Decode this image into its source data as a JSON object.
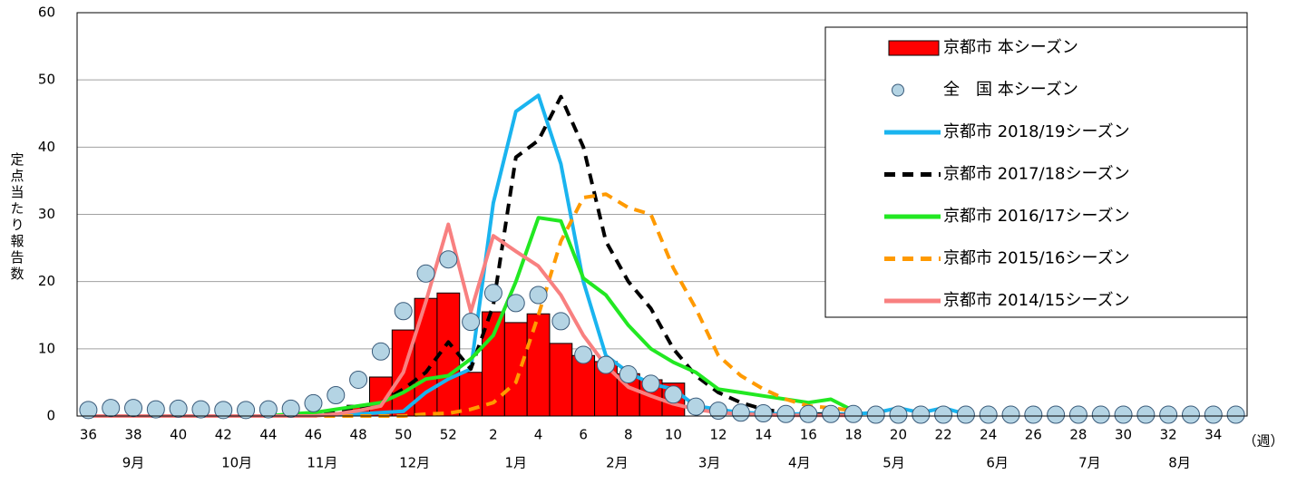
{
  "chart_data": {
    "type": "line",
    "y_axis_label": "定点当たり報告数",
    "x_unit_label": "（週）",
    "categories": [
      "36",
      null,
      "38",
      null,
      "40",
      null,
      "42",
      null,
      "44",
      null,
      "46",
      null,
      "48",
      null,
      "50",
      null,
      "52",
      null,
      "2",
      null,
      "4",
      null,
      "6",
      null,
      "8",
      null,
      "10",
      null,
      "12",
      null,
      "14",
      null,
      "16",
      null,
      "18",
      null,
      "20",
      null,
      "22",
      null,
      "24",
      null,
      "26",
      null,
      "28",
      null,
      "30",
      null,
      "32",
      null,
      "34",
      null
    ],
    "month_labels": [
      "9月",
      "10月",
      "11月",
      "12月",
      "1月",
      "2月",
      "3月",
      "4月",
      "5月",
      "6月",
      "7月",
      "8月"
    ],
    "ylim": [
      0,
      60
    ],
    "yticks": [
      0,
      10,
      20,
      30,
      40,
      50,
      60
    ],
    "grid": true,
    "legend_position": "upper right",
    "series": [
      {
        "name": "京都市 本シーズン",
        "kind": "bar",
        "color": "#ff0000",
        "values": [
          0,
          0,
          0,
          0,
          0,
          0,
          0,
          0,
          0,
          0,
          0.2,
          0.5,
          1.6,
          5.8,
          12.8,
          17.5,
          18.3,
          6.5,
          15.5,
          13.9,
          15.2,
          10.8,
          9.0,
          8.1,
          6.3,
          5.4,
          4.9,
          null,
          null,
          null,
          null,
          null,
          null,
          null,
          null,
          null,
          null,
          null,
          null,
          null,
          null,
          null,
          null,
          null,
          null,
          null,
          null,
          null,
          null,
          null,
          null,
          null
        ]
      },
      {
        "name": "全　国 本シーズン",
        "kind": "marker",
        "color": "#b4d4e4",
        "values": [
          0.9,
          1.2,
          1.2,
          1.0,
          1.1,
          1.0,
          0.9,
          0.9,
          1.0,
          1.1,
          1.9,
          3.1,
          5.4,
          9.6,
          15.6,
          21.2,
          23.3,
          14.0,
          18.3,
          16.8,
          18.0,
          14.1,
          9.1,
          7.6,
          6.2,
          4.8,
          3.2,
          1.4,
          0.8,
          0.5,
          0.4,
          0.3,
          0.3,
          0.3,
          0.3,
          0.2,
          0.2,
          0.2,
          0.2,
          0.2,
          0.2,
          0.2,
          0.2,
          0.2,
          0.2,
          0.2,
          0.2,
          0.2,
          0.2,
          0.2,
          0.2,
          0.2
        ]
      },
      {
        "name": "京都市 2018/19シーズン",
        "kind": "line",
        "dashed": false,
        "color": "#1ab4ef",
        "values": [
          0,
          0,
          0,
          0,
          0,
          0,
          0,
          0,
          0,
          0,
          0.1,
          0.2,
          0.3,
          0.5,
          0.7,
          3.5,
          5.5,
          7.0,
          31.7,
          45.3,
          47.7,
          37.5,
          20.0,
          9.0,
          6.5,
          4.8,
          4.0,
          1.5,
          1.0,
          0.5,
          0.4,
          0.3,
          0.3,
          0.3,
          0.3,
          0.5,
          1.2,
          0.5,
          1.2,
          0.3,
          null,
          null,
          null,
          null,
          null,
          null,
          null,
          null,
          null,
          null,
          null,
          null
        ]
      },
      {
        "name": "京都市 2017/18シーズン",
        "kind": "line",
        "dashed": true,
        "color": "#000000",
        "values": [
          0,
          0,
          0,
          0,
          0,
          0,
          0,
          0,
          0,
          0.1,
          0.3,
          0.5,
          1.0,
          2.0,
          4.0,
          6.5,
          11.0,
          7.0,
          16.5,
          38.5,
          41.0,
          47.5,
          40.0,
          26.0,
          20.0,
          16.0,
          10.0,
          6.0,
          3.5,
          2.0,
          1.0,
          0.5,
          0.3,
          0.2,
          0.1,
          null,
          null,
          null,
          null,
          null,
          null,
          null,
          null,
          null,
          null,
          null,
          null,
          null,
          null,
          null,
          null,
          null
        ]
      },
      {
        "name": "京都市 2016/17シーズン",
        "kind": "line",
        "dashed": false,
        "color": "#22e822",
        "values": [
          0,
          0,
          0,
          0,
          0,
          0,
          0,
          0,
          0,
          0.3,
          0.5,
          1.0,
          1.5,
          2.0,
          3.5,
          5.5,
          6.0,
          8.5,
          12.0,
          20.0,
          29.5,
          29.0,
          20.5,
          18.0,
          13.5,
          10.0,
          8.0,
          6.5,
          4.0,
          3.5,
          3.0,
          2.5,
          2.0,
          2.5,
          0.8,
          null,
          null,
          null,
          null,
          null,
          null,
          null,
          null,
          null,
          null,
          null,
          null,
          null,
          null,
          null,
          null,
          null
        ]
      },
      {
        "name": "京都市 2015/16シーズン",
        "kind": "line",
        "dashed": true,
        "color": "#ff9a00",
        "values": [
          0,
          0,
          0,
          0,
          0,
          0,
          0,
          0,
          0,
          0,
          0,
          0,
          0,
          0,
          0,
          0.3,
          0.4,
          1.0,
          2.0,
          5.0,
          15.0,
          26.0,
          32.5,
          33.0,
          31.0,
          30.0,
          22.0,
          16.0,
          9.0,
          6.0,
          4.0,
          2.5,
          1.5,
          1.2,
          0.8,
          null,
          null,
          null,
          null,
          null,
          null,
          null,
          null,
          null,
          null,
          null,
          null,
          null,
          null,
          null,
          null,
          null
        ]
      },
      {
        "name": "京都市 2014/15シーズン",
        "kind": "line",
        "dashed": false,
        "color": "#f88080",
        "values": [
          0,
          0,
          0,
          0,
          0,
          0,
          0,
          0,
          0,
          0,
          0,
          0.3,
          0.8,
          1.5,
          6.5,
          17.0,
          28.5,
          15.5,
          26.8,
          24.5,
          22.3,
          18.0,
          12.0,
          7.5,
          4.3,
          3.0,
          1.8,
          1.0,
          0.5,
          0.3,
          0.2,
          0.1,
          0.1,
          0.1,
          0.1,
          null,
          null,
          null,
          null,
          null,
          null,
          null,
          null,
          null,
          null,
          null,
          null,
          null,
          null,
          null,
          null,
          null
        ]
      }
    ]
  }
}
